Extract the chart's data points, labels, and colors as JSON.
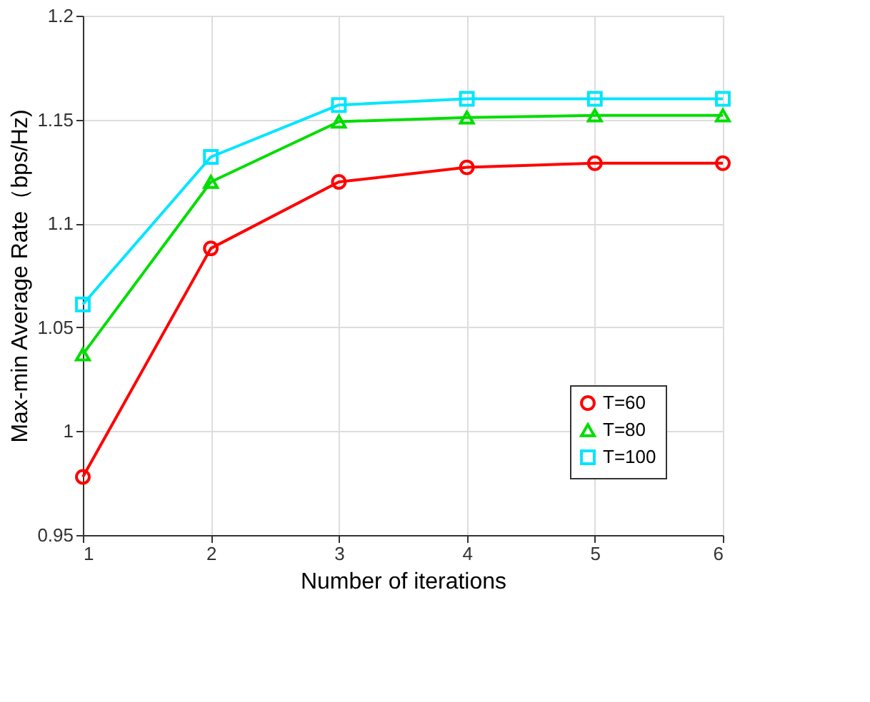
{
  "chart_data": {
    "type": "line",
    "xlabel": "Number of iterations",
    "ylabel": "Max-min Average Rate（bps/Hz)",
    "x": [
      1,
      2,
      3,
      4,
      5,
      6
    ],
    "xlim": [
      1,
      6
    ],
    "xticks": [
      1,
      2,
      3,
      4,
      5,
      6
    ],
    "ylim": [
      0.95,
      1.2
    ],
    "yticks": [
      0.95,
      1,
      1.05,
      1.1,
      1.15,
      1.2
    ],
    "series": [
      {
        "name": "T=60",
        "color": "#ff0000",
        "marker": "circle",
        "values": [
          0.978,
          1.088,
          1.12,
          1.127,
          1.129,
          1.129
        ]
      },
      {
        "name": "T=80",
        "color": "#00dd00",
        "marker": "triangle",
        "values": [
          1.037,
          1.12,
          1.149,
          1.151,
          1.152,
          1.152
        ]
      },
      {
        "name": "T=100",
        "color": "#00e5ff",
        "marker": "square",
        "values": [
          1.061,
          1.132,
          1.157,
          1.16,
          1.16,
          1.16
        ]
      }
    ],
    "grid": true,
    "legend": "bottom right",
    "line_style": "solid"
  }
}
